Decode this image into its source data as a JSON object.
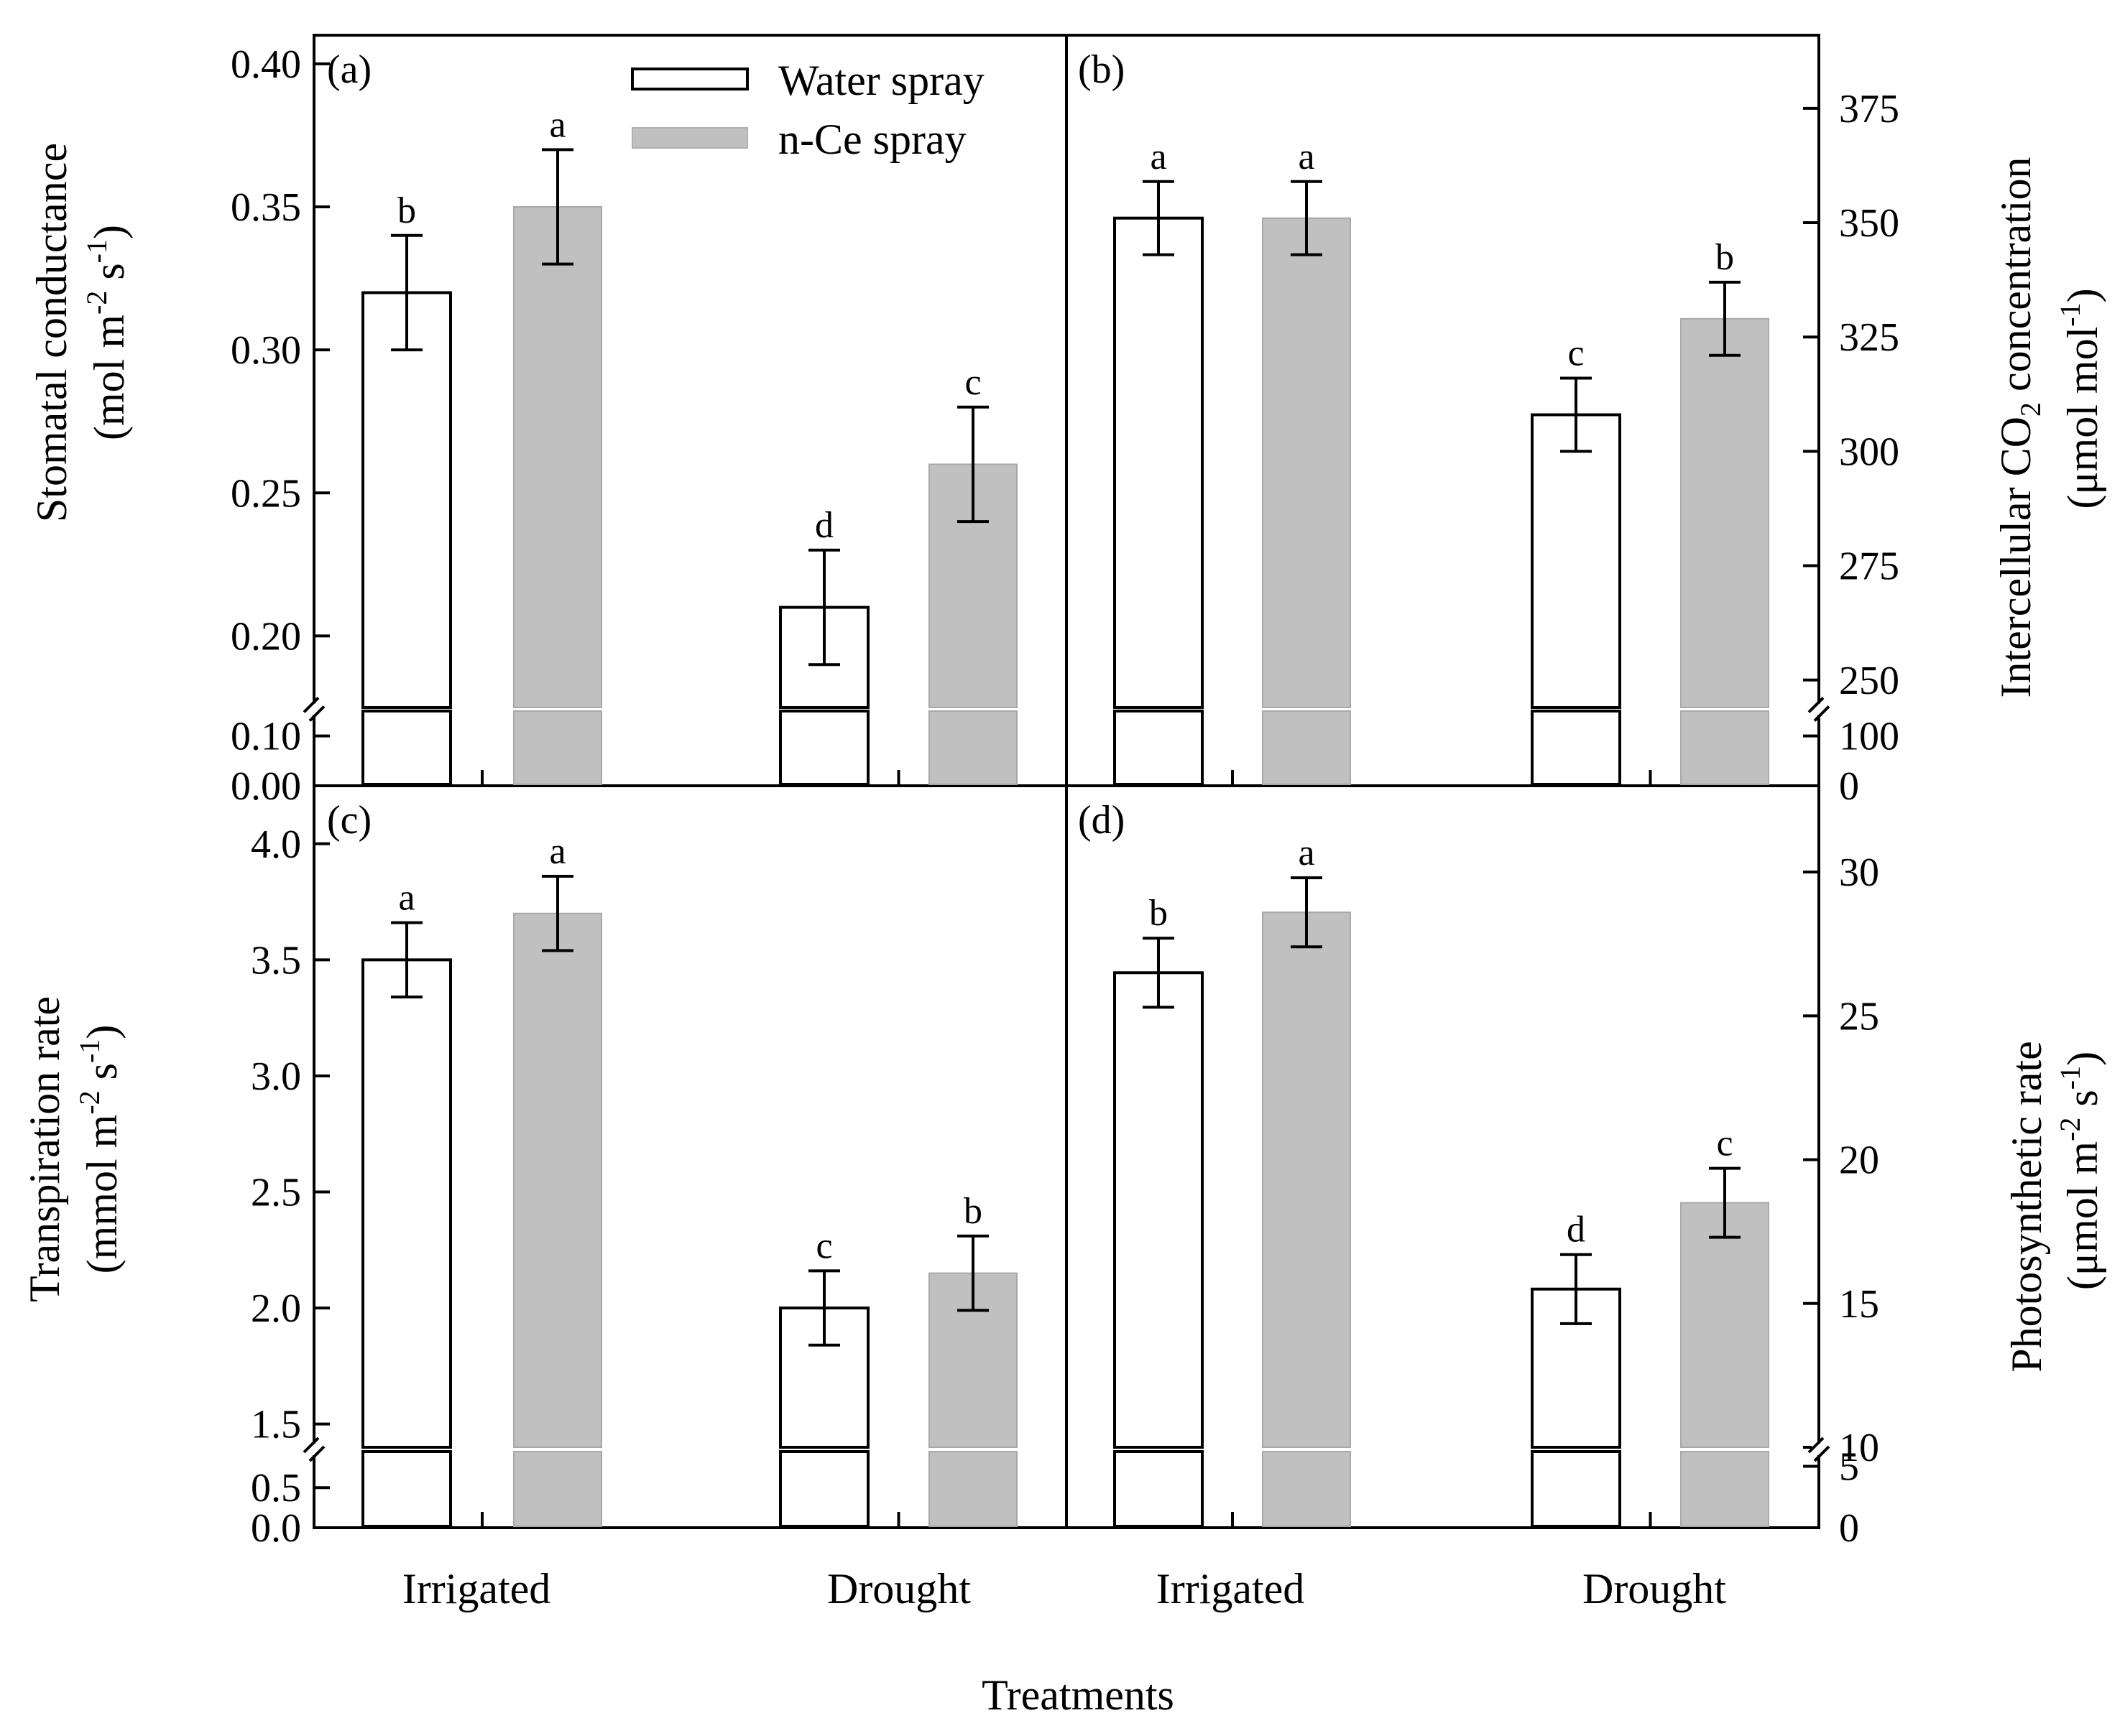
{
  "chart_data": [
    {
      "panel": "(a)",
      "type": "bar",
      "ylabel_line1": "Stomatal conductance",
      "ylabel_line2": "(mol m",
      "ylabel_line2_sup1": "-2",
      "ylabel_line2_mid": " s",
      "ylabel_line2_sup2": "-1",
      "ylabel_line2_end": ")",
      "axis_side": "left",
      "ylim": [
        0.175,
        0.41
      ],
      "yticks": [
        0.2,
        0.25,
        0.3,
        0.35,
        0.4
      ],
      "ytick_labels": [
        "0.20",
        "0.25",
        "0.30",
        "0.35",
        "0.40"
      ],
      "break_ylim": [
        0,
        0.15
      ],
      "break_yticks": [
        0.0,
        0.1
      ],
      "break_ytick_labels": [
        "0.00",
        "0.10"
      ],
      "categories": [
        "Irrigated",
        "Drought"
      ],
      "series": [
        {
          "name": "Water spray",
          "values": [
            0.32,
            0.21
          ],
          "errors": [
            0.02,
            0.02
          ],
          "letters": [
            "b",
            "d"
          ]
        },
        {
          "name": "n-Ce spray",
          "values": [
            0.35,
            0.26
          ],
          "errors": [
            0.02,
            0.02
          ],
          "letters": [
            "a",
            "c"
          ]
        }
      ]
    },
    {
      "panel": "(b)",
      "type": "bar",
      "ylabel_line1_pre": "Intercellular CO",
      "ylabel_line1_sub": "2",
      "ylabel_line1_post": " concentration",
      "ylabel_line2": "(μmol mol",
      "ylabel_line2_sup1": "-1",
      "ylabel_line2_end": ")",
      "axis_side": "right",
      "ylim": [
        244,
        391
      ],
      "yticks": [
        250,
        275,
        300,
        325,
        350,
        375
      ],
      "ytick_labels": [
        "250",
        "275",
        "300",
        "325",
        "350",
        "375"
      ],
      "break_ylim": [
        0,
        150
      ],
      "break_yticks": [
        0,
        100
      ],
      "break_ytick_labels": [
        "0",
        "100"
      ],
      "categories": [
        "Irrigated",
        "Drought"
      ],
      "series": [
        {
          "name": "Water spray",
          "values": [
            351,
            308
          ],
          "errors": [
            8,
            8
          ],
          "letters": [
            "a",
            "c"
          ]
        },
        {
          "name": "n-Ce spray",
          "values": [
            351,
            329
          ],
          "errors": [
            8,
            8
          ],
          "letters": [
            "a",
            "b"
          ]
        }
      ]
    },
    {
      "panel": "(c)",
      "type": "bar",
      "ylabel_line1": "Transpiration rate",
      "ylabel_line2": "(mmol m",
      "ylabel_line2_sup1": "-2",
      "ylabel_line2_mid": " s",
      "ylabel_line2_sup2": "-1",
      "ylabel_line2_end": ")",
      "axis_side": "left",
      "ylim": [
        1.4,
        4.25
      ],
      "yticks": [
        1.5,
        2.0,
        2.5,
        3.0,
        3.5,
        4.0
      ],
      "ytick_labels": [
        "1.5",
        "2.0",
        "2.5",
        "3.0",
        "3.5",
        "4.0"
      ],
      "break_ylim": [
        0,
        0.95
      ],
      "break_yticks": [
        0.0,
        0.5
      ],
      "break_ytick_labels": [
        "0.0",
        "0.5"
      ],
      "categories": [
        "Irrigated",
        "Drought"
      ],
      "series": [
        {
          "name": "Water spray",
          "values": [
            3.5,
            2.0
          ],
          "errors": [
            0.16,
            0.16
          ],
          "letters": [
            "a",
            "c"
          ]
        },
        {
          "name": "n-Ce spray",
          "values": [
            3.7,
            2.15
          ],
          "errors": [
            0.16,
            0.16
          ],
          "letters": [
            "a",
            "b"
          ]
        }
      ]
    },
    {
      "panel": "(d)",
      "type": "bar",
      "ylabel_line1": "Photosynthetic rate",
      "ylabel_line2": "(μmol m",
      "ylabel_line2_sup1": "-2",
      "ylabel_line2_mid": " s",
      "ylabel_line2_sup2": "-1",
      "ylabel_line2_end": ")",
      "axis_side": "right",
      "ylim": [
        10,
        33
      ],
      "yticks": [
        10,
        15,
        20,
        25,
        30
      ],
      "ytick_labels": [
        "10",
        "15",
        "20",
        "25",
        "30"
      ],
      "break_ylim": [
        0,
        6.2
      ],
      "break_yticks": [
        0,
        5
      ],
      "break_ytick_labels": [
        "0",
        "5"
      ],
      "categories": [
        "Irrigated",
        "Drought"
      ],
      "series": [
        {
          "name": "Water spray",
          "values": [
            26.5,
            15.5
          ],
          "errors": [
            1.2,
            1.2
          ],
          "letters": [
            "b",
            "d"
          ]
        },
        {
          "name": "n-Ce spray",
          "values": [
            28.6,
            18.5
          ],
          "errors": [
            1.2,
            1.2
          ],
          "letters": [
            "a",
            "c"
          ]
        }
      ]
    }
  ],
  "legend": [
    {
      "name": "Water spray",
      "fill": "#ffffff"
    },
    {
      "name": "n-Ce spray",
      "fill": "#c0c0c0"
    }
  ],
  "xlabel": "Treatments",
  "colors": {
    "water": "#ffffff",
    "nce": "#c0c0c0",
    "axis": "#000000",
    "nce_edge": "#a8a8a8"
  }
}
